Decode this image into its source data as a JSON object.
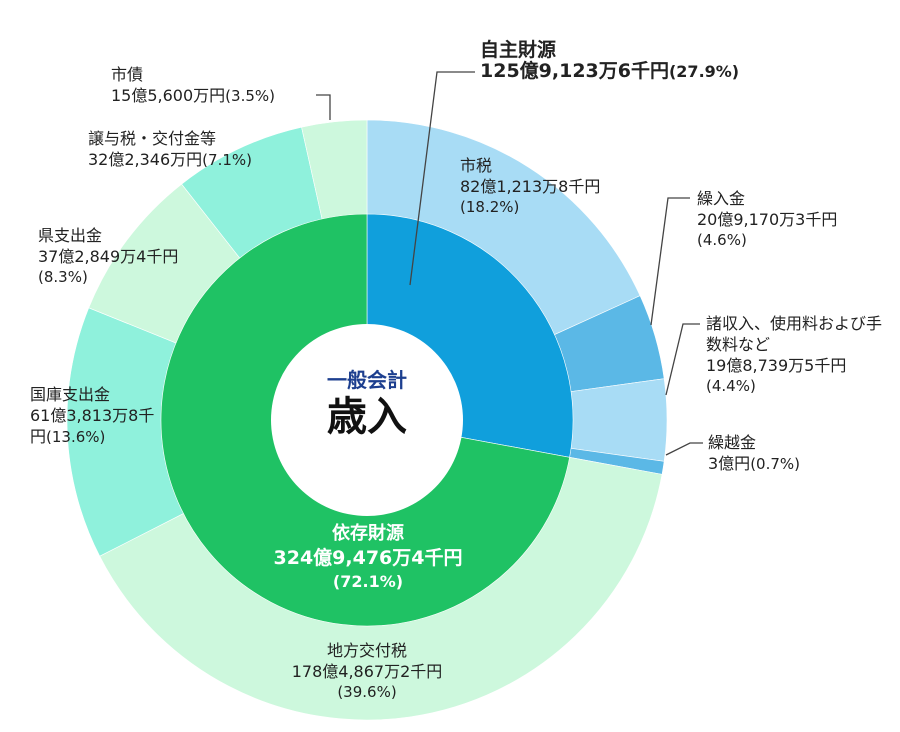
{
  "chart_data": {
    "type": "pie",
    "center": {
      "subtitle": "一般会計",
      "title": "歳入"
    },
    "inner_ring": [
      {
        "name": "自主財源",
        "amount": "125億9,123万6千円",
        "percent": "(27.9%)",
        "value": 27.9,
        "color": "#109fdc"
      },
      {
        "name": "依存財源",
        "amount": "324億9,476万4千円",
        "percent": "(72.1%)",
        "value": 72.1,
        "color": "#1fc264"
      }
    ],
    "outer_ring": [
      {
        "name": "市税",
        "amount": "82億1,213万8千円",
        "percent": "(18.2%)",
        "value": 18.2,
        "group": "自主財源",
        "color": "#a8dcf5"
      },
      {
        "name": "繰入金",
        "amount": "20億9,170万3千円",
        "percent": "(4.6%)",
        "value": 4.6,
        "group": "自主財源",
        "color": "#5bb8e6"
      },
      {
        "name": "諸収入、使用料および手数料など",
        "amount": "19億8,739万5千円",
        "percent": "(4.4%)",
        "value": 4.4,
        "group": "自主財源",
        "color": "#a8dcf5"
      },
      {
        "name": "繰越金",
        "amount": "3億円",
        "percent": "(0.7%)",
        "value": 0.7,
        "group": "自主財源",
        "color": "#5bb8e6"
      },
      {
        "name": "地方交付税",
        "amount": "178億4,867万2千円",
        "percent": "(39.6%)",
        "value": 39.6,
        "group": "依存財源",
        "color": "#cdf8dd"
      },
      {
        "name": "国庫支出金",
        "amount": "61億3,813万8千円",
        "percent": "(13.6%)",
        "value": 13.6,
        "group": "依存財源",
        "color": "#8ff1dc"
      },
      {
        "name": "県支出金",
        "amount": "37億2,849万4千円",
        "percent": "(8.3%)",
        "value": 8.3,
        "group": "依存財源",
        "color": "#cdf8dd"
      },
      {
        "name": "譲与税・交付金等",
        "amount": "32億2,346万円",
        "percent": "(7.1%)",
        "value": 7.1,
        "group": "依存財源",
        "color": "#8ff1dc"
      },
      {
        "name": "市債",
        "amount": "15億5,600万円",
        "percent": "(3.5%)",
        "value": 3.5,
        "group": "依存財源",
        "color": "#cdf8dd"
      }
    ]
  }
}
